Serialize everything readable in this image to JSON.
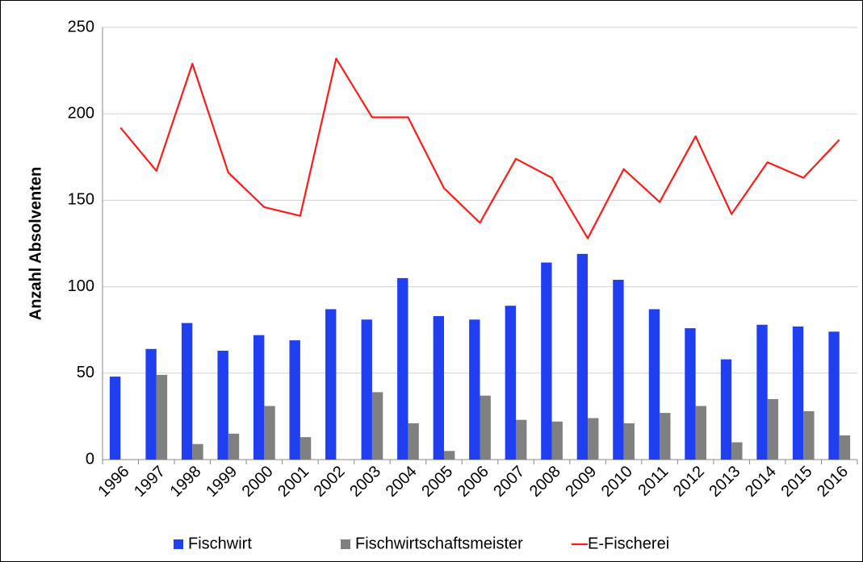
{
  "chart_data": {
    "type": "bar",
    "y_label": "Anzahl Absolventen",
    "categories": [
      "1996",
      "1997",
      "1998",
      "1999",
      "2000",
      "2001",
      "2002",
      "2003",
      "2004",
      "2005",
      "2006",
      "2007",
      "2008",
      "2009",
      "2010",
      "2011",
      "2012",
      "2013",
      "2014",
      "2015",
      "2016"
    ],
    "series": [
      {
        "name": "Fischwirt",
        "type": "bar",
        "color": "#1f3ff0",
        "values": [
          48,
          64,
          79,
          63,
          72,
          69,
          87,
          81,
          105,
          83,
          81,
          89,
          114,
          119,
          104,
          87,
          76,
          58,
          78,
          77,
          74
        ]
      },
      {
        "name": "Fischwirtschaftsmeister",
        "type": "bar",
        "color": "#808080",
        "values": [
          0,
          49,
          9,
          15,
          31,
          13,
          0,
          39,
          21,
          5,
          37,
          23,
          22,
          24,
          21,
          27,
          31,
          10,
          35,
          28,
          14
        ]
      },
      {
        "name": "E-Fischerei",
        "type": "line",
        "color": "#ff1a1a",
        "values": [
          192,
          167,
          229,
          166,
          146,
          141,
          232,
          198,
          198,
          157,
          137,
          174,
          163,
          128,
          168,
          149,
          187,
          142,
          172,
          163,
          185
        ]
      }
    ],
    "ylim": [
      0,
      250
    ],
    "yticks": [
      0,
      50,
      100,
      150,
      200,
      250
    ],
    "grid": true,
    "legend": "bottom"
  }
}
